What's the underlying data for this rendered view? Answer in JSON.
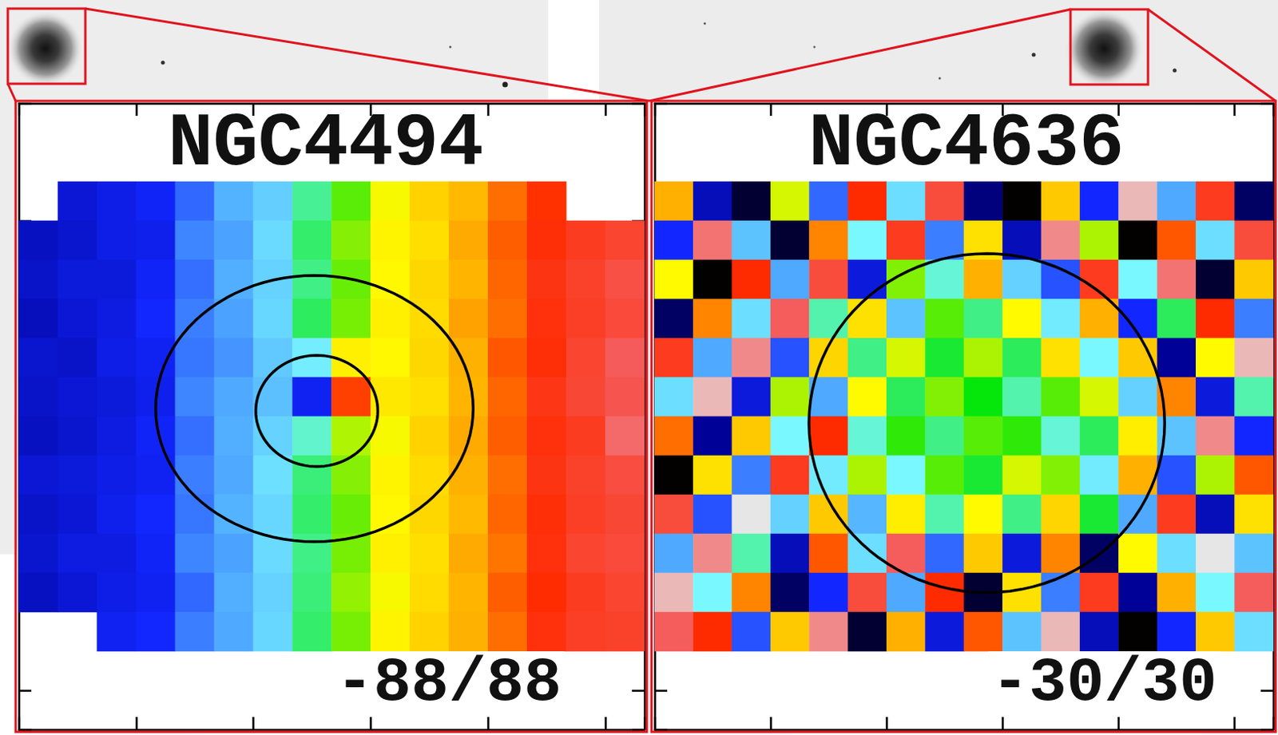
{
  "chart_data": [
    {
      "type": "heatmap",
      "title": "NGC4494",
      "range_label": "-88/88",
      "color_range": [
        -88,
        88
      ],
      "tick_labels": false,
      "cells": [
        [
          null,
          null,
          null,
          null,
          null,
          null,
          null,
          null,
          null,
          null,
          null,
          null,
          null,
          null,
          null,
          null
        ],
        [
          null,
          null,
          null,
          null,
          null,
          null,
          null,
          null,
          null,
          null,
          null,
          null,
          null,
          null,
          null,
          null
        ],
        [
          null,
          -60,
          -57,
          -54,
          -44,
          -33,
          -27,
          -10,
          6,
          17,
          27,
          33,
          44,
          52,
          null,
          null
        ],
        [
          -63,
          -61,
          -57,
          -56,
          -40,
          -36,
          -24,
          -7,
          9,
          19,
          24,
          36,
          46,
          54,
          59,
          62
        ],
        [
          -62,
          -59,
          -59,
          -54,
          -43,
          -34,
          -26,
          -9,
          7,
          18,
          26,
          34,
          45,
          56,
          61,
          66
        ],
        [
          -64,
          -60,
          -58,
          -53,
          -41,
          -36,
          -25,
          -6,
          8,
          20,
          25,
          37,
          44,
          55,
          60,
          64
        ],
        [
          -61,
          -62,
          -57,
          -55,
          -42,
          -38,
          -28,
          -20,
          20,
          18,
          26,
          35,
          47,
          54,
          62,
          70
        ],
        [
          -62,
          -60,
          -59,
          -56,
          -40,
          -35,
          -30,
          -55,
          50,
          22,
          24,
          34,
          45,
          57,
          63,
          68
        ],
        [
          -63,
          -61,
          -58,
          -54,
          -43,
          -34,
          -26,
          -14,
          12,
          17,
          27,
          36,
          46,
          55,
          59,
          72
        ],
        [
          -60,
          -59,
          -57,
          -55,
          -41,
          -35,
          -23,
          -8,
          9,
          19,
          25,
          35,
          44,
          56,
          61,
          65
        ],
        [
          -62,
          -60,
          -56,
          -53,
          -42,
          -33,
          -25,
          -7,
          7,
          18,
          26,
          33,
          45,
          54,
          60,
          63
        ],
        [
          -61,
          -58,
          -58,
          -54,
          -40,
          -36,
          -24,
          -9,
          8,
          20,
          24,
          36,
          43,
          55,
          62,
          64
        ],
        [
          -63,
          -60,
          -57,
          -55,
          -44,
          -34,
          -26,
          -8,
          10,
          17,
          25,
          34,
          46,
          53,
          59,
          62
        ],
        [
          null,
          null,
          -55,
          -53,
          -41,
          -35,
          -25,
          -7,
          8,
          19,
          27,
          35,
          44,
          55,
          60,
          61
        ],
        [
          null,
          null,
          null,
          null,
          null,
          null,
          null,
          null,
          null,
          null,
          null,
          null,
          null,
          null,
          null,
          null
        ],
        [
          null,
          null,
          null,
          null,
          null,
          null,
          null,
          null,
          null,
          null,
          null,
          null,
          null,
          null,
          null,
          null
        ]
      ],
      "contours": [
        {
          "center": [
            7.06,
            7.3
          ],
          "radii": [
            4.06,
            3.4
          ]
        },
        {
          "center": [
            7.12,
            7.36
          ],
          "radii": [
            1.56,
            1.42
          ]
        }
      ]
    },
    {
      "type": "heatmap",
      "title": "NGC4636",
      "range_label": "-30/30",
      "color_range": [
        -30,
        30
      ],
      "tick_labels": false,
      "cells": [
        [
          null,
          null,
          null,
          null,
          null,
          null,
          null,
          null,
          null,
          null,
          null,
          null,
          null,
          null,
          null,
          null
        ],
        [
          null,
          null,
          null,
          null,
          null,
          null,
          null,
          null,
          null,
          null,
          null,
          null,
          null,
          null,
          null,
          null
        ],
        [
          12,
          -22,
          -28,
          5,
          -15,
          18,
          -8,
          22,
          -25,
          -30,
          10,
          -18,
          28,
          -12,
          20,
          -26
        ],
        [
          -18,
          25,
          -10,
          -28,
          14,
          -6,
          20,
          -14,
          8,
          -22,
          26,
          4,
          -30,
          16,
          -8,
          22
        ],
        [
          6,
          -30,
          18,
          -12,
          22,
          -20,
          3,
          -5,
          12,
          -9,
          -16,
          20,
          -6,
          25,
          -28,
          10
        ],
        [
          -26,
          14,
          -8,
          24,
          -4,
          8,
          -10,
          2,
          -3,
          6,
          -7,
          12,
          -18,
          -2,
          18,
          -14
        ],
        [
          20,
          -12,
          26,
          -16,
          9,
          -3,
          5,
          -1,
          4,
          -2,
          8,
          -6,
          10,
          -24,
          6,
          28
        ],
        [
          -8,
          28,
          -20,
          4,
          -12,
          6,
          -2,
          3,
          0,
          -4,
          2,
          5,
          -9,
          14,
          -20,
          -4
        ],
        [
          15,
          -24,
          10,
          -6,
          18,
          -5,
          1,
          -3,
          2,
          1,
          -5,
          -2,
          7,
          -10,
          26,
          -18
        ],
        [
          -30,
          8,
          -14,
          20,
          -7,
          4,
          -6,
          2,
          -1,
          5,
          3,
          -7,
          12,
          -16,
          4,
          16
        ],
        [
          22,
          -16,
          30,
          -9,
          10,
          -11,
          7,
          -4,
          6,
          -3,
          9,
          -1,
          -12,
          20,
          -22,
          8
        ],
        [
          -12,
          26,
          -4,
          -22,
          16,
          -8,
          24,
          -15,
          10,
          -20,
          14,
          -26,
          6,
          -8,
          30,
          -10
        ],
        [
          28,
          -6,
          14,
          -26,
          -18,
          22,
          -12,
          18,
          -28,
          8,
          -14,
          20,
          -24,
          12,
          -6,
          24
        ],
        [
          24,
          18,
          -16,
          10,
          26,
          -28,
          12,
          -20,
          16,
          -10,
          28,
          -22,
          -30,
          -18,
          10,
          -8
        ],
        [
          null,
          null,
          null,
          null,
          null,
          null,
          null,
          null,
          null,
          null,
          null,
          null,
          null,
          null,
          null,
          null
        ],
        [
          null,
          null,
          null,
          null,
          null,
          null,
          null,
          null,
          null,
          null,
          null,
          null,
          null,
          null,
          null,
          null
        ]
      ],
      "contours": [
        {
          "center": [
            8.09,
            7.67
          ],
          "radii": [
            4.6,
            4.33
          ]
        }
      ]
    }
  ]
}
